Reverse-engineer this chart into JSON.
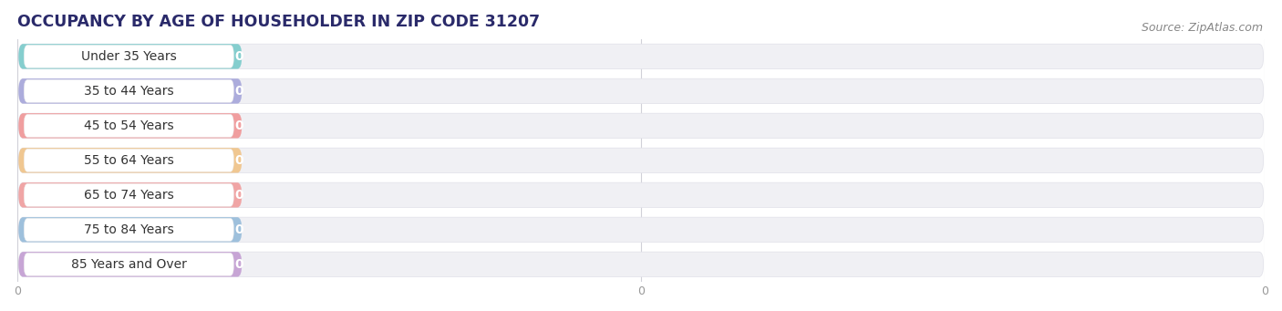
{
  "title": "OCCUPANCY BY AGE OF HOUSEHOLDER IN ZIP CODE 31207",
  "source": "Source: ZipAtlas.com",
  "categories": [
    "Under 35 Years",
    "35 to 44 Years",
    "45 to 54 Years",
    "55 to 64 Years",
    "65 to 74 Years",
    "75 to 84 Years",
    "85 Years and Over"
  ],
  "values": [
    0,
    0,
    0,
    0,
    0,
    0,
    0
  ],
  "bar_colors": [
    "#72c8c8",
    "#a0a0d8",
    "#f09090",
    "#f0c080",
    "#f09898",
    "#90b8d8",
    "#c098d0"
  ],
  "bar_bg_color": "#f0f0f4",
  "bar_bg_border": "#e0e0e8",
  "white_pill_bg": "#ffffff",
  "background_color": "#ffffff",
  "title_fontsize": 12.5,
  "source_fontsize": 9,
  "label_fontsize": 10,
  "value_fontsize": 10,
  "tick_fontsize": 9,
  "grid_color": "#d0d0d8",
  "title_color": "#2a2a6a",
  "label_color": "#333333",
  "source_color": "#888888"
}
